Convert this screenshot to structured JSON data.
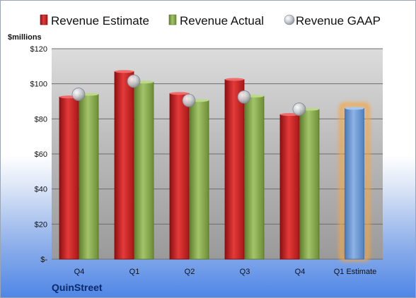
{
  "chart_data": {
    "type": "bar",
    "company": "QuinStreet",
    "unit_label": "$millions",
    "categories": [
      "Q4",
      "Q1",
      "Q2",
      "Q3",
      "Q4",
      "Q1 Estimate"
    ],
    "ylim": [
      0,
      120
    ],
    "y_ticks": [
      {
        "value": 0,
        "label": "$-"
      },
      {
        "value": 20,
        "label": "$20"
      },
      {
        "value": 40,
        "label": "$40"
      },
      {
        "value": 60,
        "label": "$60"
      },
      {
        "value": 80,
        "label": "$80"
      },
      {
        "value": 100,
        "label": "$100"
      },
      {
        "value": 120,
        "label": "$120"
      }
    ],
    "grid": true,
    "legend_position": "top",
    "series": [
      {
        "name": "Revenue Estimate",
        "kind": "bar",
        "color": "#d42a2a",
        "values": [
          92.5,
          107,
          94.5,
          102.5,
          82.5,
          null
        ]
      },
      {
        "name": "Revenue Actual",
        "kind": "bar",
        "color": "#8cae52",
        "values": [
          94,
          101,
          90.5,
          93,
          85.5,
          null
        ]
      },
      {
        "name": "Revenue GAAP",
        "kind": "marker",
        "color": "#bfc3c9",
        "values": [
          94,
          101.5,
          90.5,
          92.5,
          85.5,
          null
        ]
      }
    ],
    "estimate": {
      "category_index": 5,
      "value": 86,
      "color": "#6f9bd6",
      "glow_color": "#f5a640"
    }
  }
}
